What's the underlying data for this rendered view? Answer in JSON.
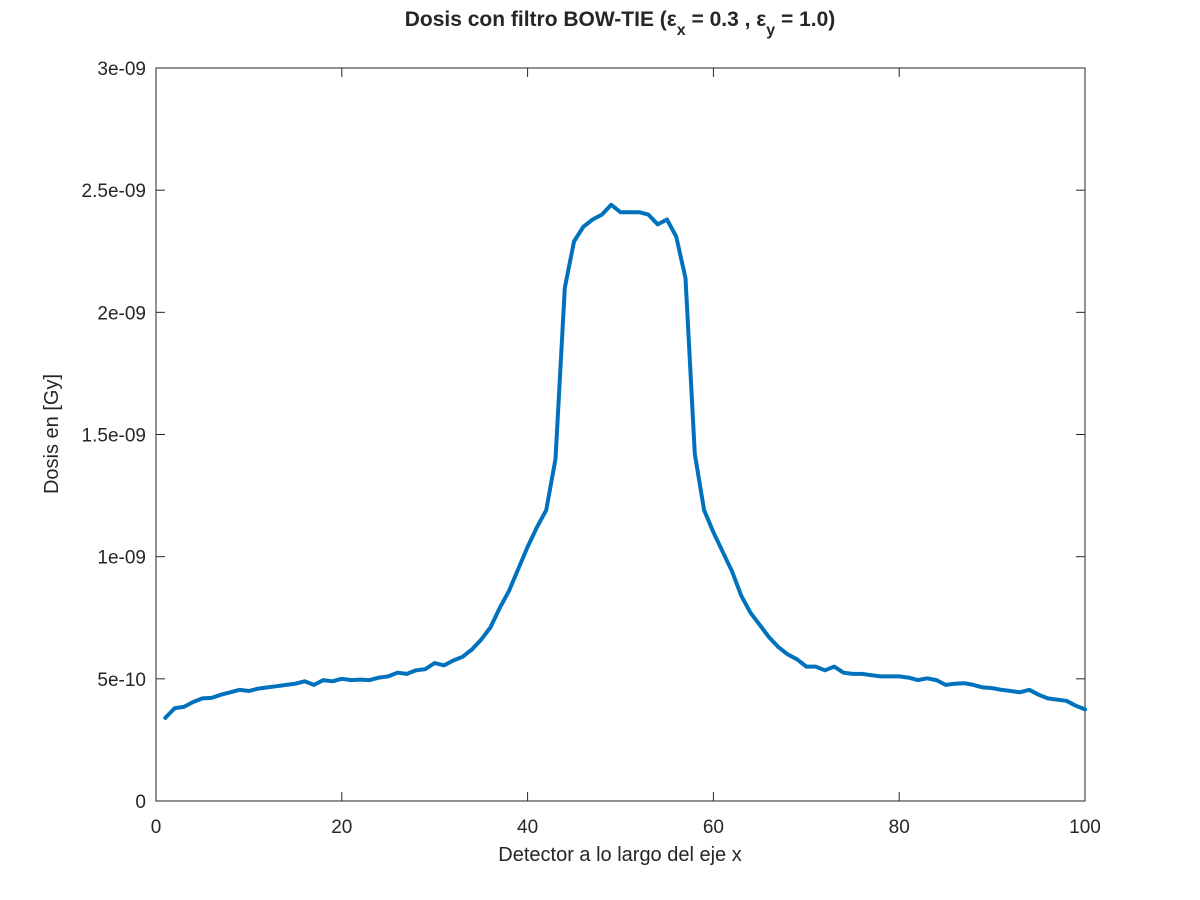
{
  "chart_data": {
    "type": "line",
    "title": {
      "prefix": "Dosis con filtro BOW-TIE (",
      "eps1": "ε",
      "sub1": "x",
      "mid": " = 0.3 , ",
      "eps2": "ε",
      "sub2": "y",
      "suffix": " = 1.0)"
    },
    "xlabel": "Detector a lo largo del eje x",
    "ylabel": "Dosis en [Gy]",
    "xlim": [
      0,
      100
    ],
    "ylim": [
      0,
      3e-09
    ],
    "xticks": [
      0,
      20,
      40,
      60,
      80,
      100
    ],
    "xtick_labels": [
      "0",
      "20",
      "40",
      "60",
      "80",
      "100"
    ],
    "yticks": [
      0,
      5e-10,
      1e-09,
      1.5e-09,
      2e-09,
      2.5e-09,
      3e-09
    ],
    "ytick_labels": [
      "0",
      "5e-10",
      "1e-09",
      "1.5e-09",
      "2e-09",
      "2.5e-09",
      "3e-09"
    ],
    "grid": false,
    "line_color": "#0072BD",
    "series": [
      {
        "x": [
          1,
          2,
          3,
          4,
          5,
          6,
          7,
          8,
          9,
          10,
          11,
          12,
          13,
          14,
          15,
          16,
          17,
          18,
          19,
          20,
          21,
          22,
          23,
          24,
          25,
          26,
          27,
          28,
          29,
          30,
          31,
          32,
          33,
          34,
          35,
          36,
          37,
          38,
          39,
          40,
          41,
          42,
          43,
          44,
          45,
          46,
          47,
          48,
          49,
          50,
          51,
          52,
          53,
          54,
          55,
          56,
          57,
          58,
          59,
          60,
          61,
          62,
          63,
          64,
          65,
          66,
          67,
          68,
          69,
          70,
          71,
          72,
          73,
          74,
          75,
          76,
          77,
          78,
          79,
          80,
          81,
          82,
          83,
          84,
          85,
          86,
          87,
          88,
          89,
          90,
          91,
          92,
          93,
          94,
          95,
          96,
          97,
          98,
          99,
          100
        ],
        "values": [
          3.4e-10,
          3.8e-10,
          3.85e-10,
          4.05e-10,
          4.2e-10,
          4.22e-10,
          4.35e-10,
          4.45e-10,
          4.55e-10,
          4.5e-10,
          4.6e-10,
          4.65e-10,
          4.7e-10,
          4.75e-10,
          4.8e-10,
          4.9e-10,
          4.75e-10,
          4.95e-10,
          4.9e-10,
          5e-10,
          4.95e-10,
          4.97e-10,
          4.95e-10,
          5.05e-10,
          5.1e-10,
          5.25e-10,
          5.2e-10,
          5.35e-10,
          5.4e-10,
          5.65e-10,
          5.55e-10,
          5.75e-10,
          5.9e-10,
          6.2e-10,
          6.6e-10,
          7.1e-10,
          7.9e-10,
          8.6e-10,
          9.5e-10,
          1.04e-09,
          1.12e-09,
          1.19e-09,
          1.4e-09,
          2.1e-09,
          2.29e-09,
          2.35e-09,
          2.38e-09,
          2.4e-09,
          2.44e-09,
          2.41e-09,
          2.41e-09,
          2.41e-09,
          2.4e-09,
          2.36e-09,
          2.38e-09,
          2.31e-09,
          2.14e-09,
          1.42e-09,
          1.19e-09,
          1.1e-09,
          1.02e-09,
          9.4e-10,
          8.4e-10,
          7.7e-10,
          7.2e-10,
          6.7e-10,
          6.3e-10,
          6e-10,
          5.8e-10,
          5.5e-10,
          5.5e-10,
          5.35e-10,
          5.5e-10,
          5.25e-10,
          5.2e-10,
          5.2e-10,
          5.15e-10,
          5.1e-10,
          5.1e-10,
          5.1e-10,
          5.05e-10,
          4.95e-10,
          5.02e-10,
          4.95e-10,
          4.75e-10,
          4.8e-10,
          4.82e-10,
          4.75e-10,
          4.65e-10,
          4.62e-10,
          4.55e-10,
          4.5e-10,
          4.45e-10,
          4.55e-10,
          4.35e-10,
          4.2e-10,
          4.15e-10,
          4.1e-10,
          3.9e-10,
          3.75e-10
        ]
      }
    ]
  }
}
